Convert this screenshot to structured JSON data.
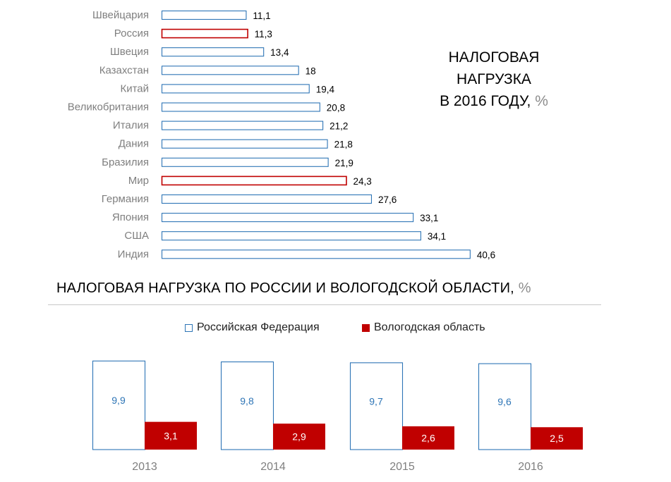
{
  "colors": {
    "outline_blue": "#2e75b6",
    "outline_red": "#c00000",
    "fill_red": "#c00000",
    "value_blue": "#2e75b6",
    "label_gray": "#7f7f7f"
  },
  "chart1": {
    "title_line1": "НАЛОГОВАЯ",
    "title_line2": "НАГРУЗКА",
    "title_line3": "В 2016 ГОДУ,",
    "title_unit": "%"
  },
  "chart2": {
    "title": "НАЛОГОВАЯ НАГРУЗКА ПО РОССИИ И ВОЛОГОДСКОЙ ОБЛАСТИ,",
    "title_unit": "%",
    "legend_rf": "Российская Федерация",
    "legend_vo": "Вологодская область"
  },
  "chart_data": [
    {
      "type": "bar",
      "orientation": "horizontal",
      "categories": [
        "Швейцария",
        "Россия",
        "Швеция",
        "Казахстан",
        "Китай",
        "Великобритания",
        "Италия",
        "Дания",
        "Бразилия",
        "Мир",
        "Германия",
        "Япония",
        "США",
        "Индия"
      ],
      "values": [
        11.1,
        11.3,
        13.4,
        18,
        19.4,
        20.8,
        21.2,
        21.8,
        21.9,
        24.3,
        27.6,
        33.1,
        34.1,
        40.6
      ],
      "value_labels": [
        "11,1",
        "11,3",
        "13,4",
        "18",
        "19,4",
        "20,8",
        "21,2",
        "21,8",
        "21,9",
        "24,3",
        "27,6",
        "33,1",
        "34,1",
        "40,6"
      ],
      "highlighted": [
        "Россия",
        "Мир"
      ],
      "title": "НАЛОГОВАЯ НАГРУЗКА В 2016 ГОДУ, %",
      "grid": false
    },
    {
      "type": "bar",
      "categories": [
        "2013",
        "2014",
        "2015",
        "2016"
      ],
      "series": [
        {
          "name": "Российская Федерация",
          "values": [
            9.9,
            9.8,
            9.7,
            9.6
          ],
          "labels": [
            "9,9",
            "9,8",
            "9,7",
            "9,6"
          ]
        },
        {
          "name": "Вологодская область",
          "values": [
            3.1,
            2.9,
            2.6,
            2.5
          ],
          "labels": [
            "3,1",
            "2,9",
            "2,6",
            "2,5"
          ]
        }
      ],
      "title": "НАЛОГОВАЯ НАГРУЗКА ПО РОССИИ И ВОЛОГОДСКОЙ ОБЛАСТИ, %",
      "legend": "top-center",
      "grid": false
    }
  ]
}
